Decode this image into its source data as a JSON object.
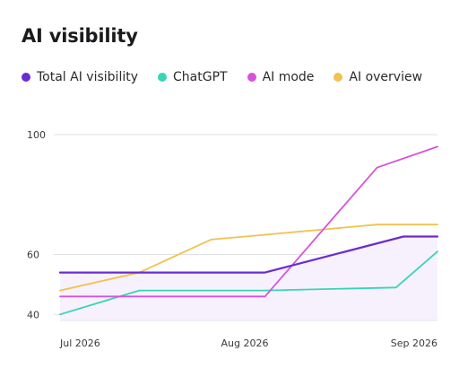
{
  "header": {
    "title": "AI visibility"
  },
  "chart_data": {
    "type": "line",
    "title": "AI visibility",
    "xlabel": "",
    "ylabel": "",
    "x_ticks": [
      "Jul 2026",
      "Aug 2026",
      "Sep 2026"
    ],
    "y_ticks": [
      40,
      60,
      100
    ],
    "ylim": [
      38,
      103
    ],
    "grid": true,
    "legend_position": "top-left",
    "x": [
      0,
      1,
      2,
      3,
      4,
      5,
      6,
      7,
      8,
      9,
      10
    ],
    "series": [
      {
        "name": "Total AI visibility",
        "color": "#6a2ccf",
        "area_fill": "#f7f1fd",
        "points": [
          [
            0,
            54
          ],
          [
            3,
            54
          ],
          [
            4,
            54
          ],
          [
            5.43,
            54
          ],
          [
            9.1,
            66
          ],
          [
            10,
            66
          ]
        ]
      },
      {
        "name": "ChatGPT",
        "color": "#36d6b5",
        "points": [
          [
            0,
            40
          ],
          [
            2.1,
            48
          ],
          [
            5.43,
            48
          ],
          [
            8.9,
            49
          ],
          [
            10,
            61
          ]
        ]
      },
      {
        "name": "AI mode",
        "color": "#d653d9",
        "points": [
          [
            0,
            46
          ],
          [
            5.43,
            46
          ],
          [
            8.4,
            89
          ],
          [
            10,
            96
          ]
        ]
      },
      {
        "name": "AI overview",
        "color": "#f2c14e",
        "points": [
          [
            0,
            48
          ],
          [
            2.1,
            54
          ],
          [
            4,
            65
          ],
          [
            8.4,
            70
          ],
          [
            10,
            70
          ]
        ]
      }
    ]
  }
}
